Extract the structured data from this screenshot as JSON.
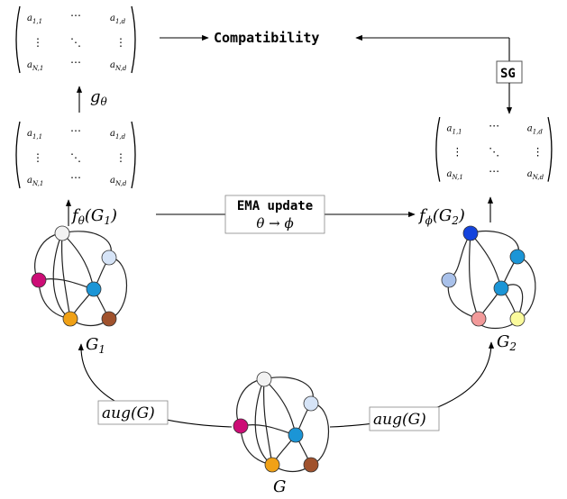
{
  "matrix": {
    "top_left": "a",
    "top_left_sub": "1,1",
    "top_right": "a",
    "top_right_sub": "1,d",
    "bottom_left": "a",
    "bottom_left_sub": "N,1",
    "bottom_right": "a",
    "bottom_right_sub": "N,d",
    "hdots": "⋯",
    "vdots": "⋮",
    "ddots": "⋱"
  },
  "labels": {
    "compatibility": "Compatibility",
    "sg": "SG",
    "ema_update": "EMA update",
    "theta_to_phi": "θ → ϕ",
    "g_theta": "gθ",
    "f_theta_g1": "fθ(G1)",
    "f_phi_g2": "fϕ(G2)",
    "g1": "G1",
    "g2": "G2",
    "g": "G",
    "aug_left": "aug(G)",
    "aug_right": "aug(G)"
  },
  "graphs": {
    "g1_node_colors": [
      "#f2f2f2",
      "#d6e4f7",
      "#cc0d76",
      "#1b95d6",
      "#f0a116",
      "#a0522d"
    ],
    "g2_node_colors": [
      "#1444dd",
      "#1b95d6",
      "#a9c1ea",
      "#1b95d6",
      "#f29a9a",
      "#fafa9c"
    ],
    "g_node_colors": [
      "#f2f2f2",
      "#d6e4f7",
      "#cc0d76",
      "#1b95d6",
      "#f0a116",
      "#a0522d"
    ]
  }
}
